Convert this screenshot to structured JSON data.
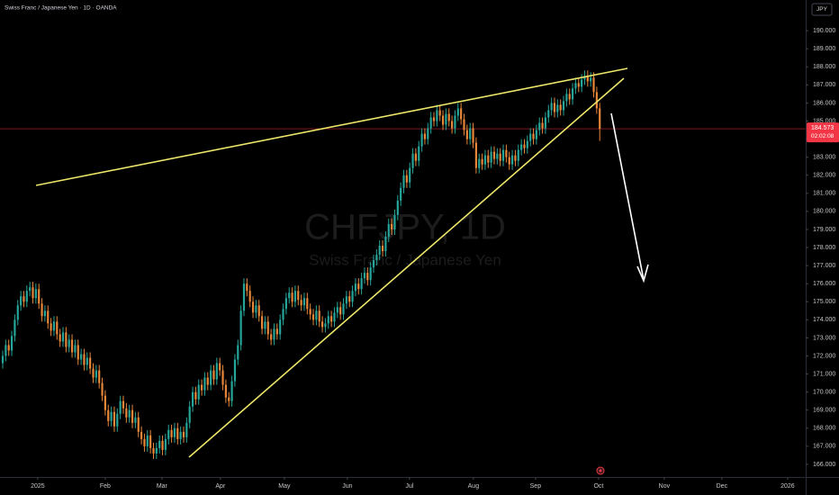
{
  "chart_data": {
    "type": "candlestick",
    "title": "Swiss Franc / Japanese Yen · 1D · OANDA",
    "watermark": "CHFJPY, 1D",
    "watermark_subtitle": "Swiss Franc / Japanese Yen",
    "currency": "JPY",
    "countdown": "02:02:08",
    "up_color": "#26a69a",
    "down_color": "#e8873a",
    "last_price_color": "#f23645",
    "grid": false,
    "open": [
      171.6,
      172.0,
      172.6,
      172.3,
      173.1,
      174.0,
      174.8,
      175.3,
      175.0,
      175.6,
      175.8,
      175.2,
      175.7,
      174.9,
      174.2,
      174.5,
      173.8,
      173.4,
      173.9,
      173.2,
      172.8,
      173.3,
      172.5,
      172.9,
      172.2,
      172.6,
      171.8,
      172.1,
      171.5,
      171.9,
      171.3,
      170.8,
      171.2,
      170.5,
      169.8,
      169.0,
      168.4,
      168.9,
      168.1,
      168.8,
      169.5,
      169.1,
      168.6,
      169.0,
      168.3,
      168.6,
      167.8,
      167.4,
      167.0,
      167.6,
      166.9,
      166.6,
      166.9,
      167.3,
      166.8,
      167.4,
      167.9,
      167.5,
      168.0,
      167.4,
      167.8,
      167.5,
      168.3,
      169.2,
      170.0,
      169.6,
      170.4,
      170.1,
      170.8,
      170.4,
      171.2,
      170.7,
      171.6,
      171.2,
      170.4,
      169.7,
      169.5,
      170.6,
      171.8,
      172.6,
      174.5,
      176.0,
      175.6,
      175.0,
      174.4,
      174.8,
      174.2,
      173.5,
      173.9,
      173.2,
      172.9,
      173.5,
      173.2,
      174.0,
      174.6,
      175.2,
      175.5,
      175.0,
      175.6,
      175.1,
      174.8,
      175.2,
      174.6,
      174.3,
      174.0,
      174.5,
      173.9,
      173.6,
      173.8,
      174.2,
      173.9,
      174.4,
      174.7,
      174.3,
      174.9,
      175.3,
      175.0,
      175.6,
      176.0,
      175.7,
      176.3,
      176.6,
      176.2,
      176.9,
      177.3,
      177.6,
      178.1,
      177.8,
      178.6,
      179.3,
      179.0,
      179.8,
      180.6,
      181.3,
      182.0,
      181.6,
      182.4,
      183.2,
      182.8,
      183.6,
      184.3,
      184.0,
      184.6,
      185.2,
      185.0,
      185.6,
      185.3,
      184.8,
      185.4,
      185.0,
      184.6,
      185.3,
      185.7,
      185.1,
      184.5,
      184.0,
      184.6,
      183.8,
      182.4,
      182.9,
      182.6,
      183.1,
      182.7,
      183.3,
      182.9,
      183.2,
      182.8,
      183.4,
      183.0,
      182.6,
      183.1,
      182.8,
      183.4,
      183.7,
      183.5,
      183.9,
      184.3,
      184.0,
      184.5,
      184.9,
      184.6,
      185.2,
      185.6,
      186.0,
      185.5,
      185.9,
      185.6,
      186.1,
      186.5,
      186.2,
      186.8,
      187.1,
      186.9,
      187.3,
      187.5,
      187.2,
      187.4,
      186.6,
      185.7
    ],
    "high": [
      172.3,
      172.9,
      172.9,
      173.4,
      174.3,
      175.1,
      175.6,
      175.6,
      175.9,
      176.1,
      176.1,
      176.0,
      176.0,
      175.2,
      174.8,
      174.8,
      174.1,
      174.2,
      174.2,
      173.5,
      173.6,
      173.6,
      173.2,
      173.2,
      172.9,
      172.9,
      172.4,
      172.4,
      172.2,
      172.2,
      171.6,
      171.5,
      171.5,
      170.8,
      170.1,
      169.3,
      169.2,
      169.2,
      169.1,
      169.8,
      169.8,
      169.4,
      169.3,
      169.3,
      168.9,
      168.9,
      168.1,
      167.7,
      167.9,
      167.9,
      167.2,
      167.2,
      167.6,
      167.6,
      167.7,
      168.2,
      168.2,
      168.3,
      168.3,
      168.1,
      168.1,
      168.6,
      169.5,
      170.3,
      170.3,
      170.7,
      170.7,
      171.1,
      171.1,
      171.5,
      171.5,
      171.9,
      171.9,
      171.5,
      170.7,
      170.0,
      170.9,
      172.1,
      172.9,
      174.8,
      176.3,
      176.3,
      175.9,
      175.3,
      175.1,
      175.1,
      174.5,
      174.2,
      174.2,
      173.5,
      173.8,
      173.8,
      174.3,
      174.9,
      175.5,
      175.8,
      175.8,
      175.9,
      175.9,
      175.4,
      175.5,
      175.5,
      174.9,
      174.6,
      174.8,
      174.8,
      174.2,
      174.1,
      174.5,
      174.5,
      174.7,
      175.0,
      175.0,
      175.2,
      175.6,
      175.6,
      175.9,
      176.3,
      176.3,
      176.6,
      176.9,
      176.9,
      177.2,
      177.6,
      177.9,
      178.4,
      178.4,
      178.9,
      179.6,
      179.6,
      180.1,
      180.9,
      181.6,
      182.3,
      182.3,
      182.7,
      183.5,
      183.5,
      183.9,
      184.6,
      184.6,
      184.9,
      185.5,
      185.5,
      185.9,
      185.9,
      185.6,
      185.7,
      185.7,
      185.3,
      185.6,
      186.0,
      186.0,
      185.4,
      184.8,
      184.9,
      184.9,
      184.1,
      183.2,
      183.2,
      183.4,
      183.4,
      183.6,
      183.6,
      183.5,
      183.5,
      183.7,
      183.7,
      183.3,
      183.4,
      183.4,
      183.7,
      184.0,
      184.0,
      184.2,
      184.6,
      184.6,
      184.8,
      185.2,
      185.2,
      185.5,
      185.9,
      186.3,
      186.3,
      186.2,
      186.2,
      186.4,
      186.8,
      186.8,
      187.1,
      187.4,
      187.4,
      187.6,
      187.8,
      187.8,
      187.7,
      187.7,
      186.9,
      186.0
    ],
    "low": [
      171.3,
      171.7,
      172.0,
      172.0,
      172.8,
      173.7,
      174.5,
      174.7,
      174.7,
      175.3,
      174.9,
      174.9,
      174.6,
      173.9,
      173.9,
      173.5,
      173.1,
      173.1,
      172.9,
      172.5,
      172.5,
      172.2,
      172.2,
      171.9,
      171.9,
      171.5,
      171.5,
      171.2,
      171.2,
      171.0,
      170.5,
      170.5,
      170.2,
      169.5,
      168.7,
      168.1,
      168.1,
      167.8,
      167.8,
      168.5,
      168.8,
      168.3,
      168.3,
      168.0,
      168.0,
      167.5,
      167.1,
      166.7,
      166.7,
      166.6,
      166.3,
      166.3,
      166.6,
      166.5,
      166.5,
      167.1,
      167.2,
      167.2,
      167.1,
      167.1,
      167.2,
      167.2,
      168.0,
      168.9,
      169.3,
      169.3,
      169.8,
      169.8,
      170.1,
      170.1,
      170.4,
      170.4,
      170.9,
      170.1,
      169.4,
      169.2,
      169.2,
      170.3,
      171.5,
      172.3,
      174.2,
      175.3,
      174.7,
      174.1,
      174.1,
      173.9,
      173.2,
      173.2,
      172.9,
      172.6,
      172.6,
      172.9,
      172.9,
      173.7,
      174.3,
      174.9,
      174.7,
      174.7,
      174.8,
      174.5,
      174.5,
      174.3,
      174.0,
      173.7,
      173.7,
      173.6,
      173.3,
      173.3,
      173.5,
      173.6,
      173.6,
      174.1,
      174.0,
      174.0,
      174.6,
      174.7,
      174.7,
      175.3,
      175.4,
      175.4,
      176.0,
      175.9,
      175.9,
      176.6,
      177.0,
      177.3,
      177.5,
      177.5,
      178.3,
      178.7,
      178.7,
      179.5,
      180.3,
      181.0,
      181.3,
      181.3,
      182.1,
      182.5,
      182.5,
      183.3,
      183.7,
      183.7,
      184.3,
      184.7,
      184.7,
      185.0,
      184.5,
      184.5,
      184.7,
      184.3,
      184.3,
      185.0,
      184.8,
      184.2,
      183.7,
      183.7,
      183.5,
      182.1,
      182.1,
      182.3,
      182.3,
      182.4,
      182.4,
      182.6,
      182.6,
      182.5,
      182.5,
      182.7,
      182.3,
      182.3,
      182.5,
      182.5,
      183.1,
      183.2,
      183.2,
      183.6,
      183.7,
      183.7,
      184.2,
      184.3,
      184.3,
      184.9,
      185.3,
      185.2,
      185.2,
      185.3,
      185.3,
      185.8,
      185.9,
      185.9,
      186.5,
      186.6,
      186.6,
      187.0,
      186.9,
      186.9,
      186.3,
      185.4,
      183.9
    ],
    "close": [
      172.0,
      172.6,
      172.3,
      173.1,
      174.0,
      174.8,
      175.3,
      175.0,
      175.6,
      175.8,
      175.2,
      175.7,
      174.9,
      174.2,
      174.5,
      173.8,
      173.4,
      173.9,
      173.2,
      172.8,
      173.3,
      172.5,
      172.9,
      172.2,
      172.6,
      171.8,
      172.1,
      171.5,
      171.9,
      171.3,
      170.8,
      171.2,
      170.5,
      169.8,
      169.0,
      168.4,
      168.9,
      168.1,
      168.8,
      169.5,
      169.1,
      168.6,
      169.0,
      168.3,
      168.6,
      167.8,
      167.4,
      167.0,
      167.6,
      166.9,
      166.6,
      166.9,
      167.3,
      166.8,
      167.4,
      167.9,
      167.5,
      168.0,
      167.4,
      167.8,
      167.5,
      168.3,
      169.2,
      170.0,
      169.6,
      170.4,
      170.1,
      170.8,
      170.4,
      171.2,
      170.7,
      171.6,
      171.2,
      170.4,
      169.7,
      169.5,
      170.6,
      171.8,
      172.6,
      174.5,
      176.0,
      175.6,
      175.0,
      174.4,
      174.8,
      174.2,
      173.5,
      173.9,
      173.2,
      172.9,
      173.5,
      173.2,
      174.0,
      174.6,
      175.2,
      175.5,
      175.0,
      175.6,
      175.1,
      174.8,
      175.2,
      174.6,
      174.3,
      174.0,
      174.5,
      173.9,
      173.6,
      173.8,
      174.2,
      173.9,
      174.4,
      174.7,
      174.3,
      174.9,
      175.3,
      175.0,
      175.6,
      176.0,
      175.7,
      176.3,
      176.6,
      176.2,
      176.9,
      177.3,
      177.6,
      178.1,
      177.8,
      178.6,
      179.3,
      179.0,
      179.8,
      180.6,
      181.3,
      182.0,
      181.6,
      182.4,
      183.2,
      182.8,
      183.6,
      184.3,
      184.0,
      184.6,
      185.2,
      185.0,
      185.6,
      185.3,
      184.8,
      185.4,
      185.0,
      184.6,
      185.3,
      185.7,
      185.1,
      184.5,
      184.0,
      184.6,
      183.8,
      182.4,
      182.9,
      182.6,
      183.1,
      182.7,
      183.3,
      182.9,
      183.2,
      182.8,
      183.4,
      183.0,
      182.6,
      183.1,
      182.8,
      183.4,
      183.7,
      183.5,
      183.9,
      184.3,
      184.0,
      184.5,
      184.9,
      184.6,
      185.2,
      185.6,
      186.0,
      185.5,
      185.9,
      185.6,
      186.1,
      186.5,
      186.2,
      186.8,
      187.1,
      186.9,
      187.3,
      187.5,
      187.2,
      187.4,
      186.6,
      185.7,
      184.573
    ],
    "xlim": [
      -0.9,
      266.3
    ],
    "xticks": [
      {
        "value": 11.6,
        "label": "2025"
      },
      {
        "value": 34.0,
        "label": "Feb"
      },
      {
        "value": 52.8,
        "label": "Mar"
      },
      {
        "value": 72.2,
        "label": "Apr"
      },
      {
        "value": 93.4,
        "label": "May"
      },
      {
        "value": 114.3,
        "label": "Jun"
      },
      {
        "value": 134.9,
        "label": "Jul"
      },
      {
        "value": 156.1,
        "label": "Aug"
      },
      {
        "value": 176.7,
        "label": "Sep"
      },
      {
        "value": 197.6,
        "label": "Oct"
      },
      {
        "value": 219.4,
        "label": "Nov"
      },
      {
        "value": 238.5,
        "label": "Dec"
      },
      {
        "value": 260.3,
        "label": "2026"
      }
    ],
    "ylim": [
      165.3,
      191.7
    ],
    "yticks": [
      {
        "value": 166,
        "label": "166.000"
      },
      {
        "value": 167,
        "label": "167.000"
      },
      {
        "value": 168,
        "label": "168.000"
      },
      {
        "value": 169,
        "label": "169.000"
      },
      {
        "value": 170,
        "label": "170.000"
      },
      {
        "value": 171,
        "label": "171.000"
      },
      {
        "value": 172,
        "label": "172.000"
      },
      {
        "value": 173,
        "label": "173.000"
      },
      {
        "value": 174,
        "label": "174.000"
      },
      {
        "value": 175,
        "label": "175.000"
      },
      {
        "value": 176,
        "label": "176.000"
      },
      {
        "value": 177,
        "label": "177.000"
      },
      {
        "value": 178,
        "label": "178.000"
      },
      {
        "value": 179,
        "label": "179.000"
      },
      {
        "value": 180,
        "label": "180.000"
      },
      {
        "value": 181,
        "label": "181.000"
      },
      {
        "value": 182,
        "label": "182.000"
      },
      {
        "value": 183,
        "label": "183.000"
      },
      {
        "value": 184,
        "label": "184.000"
      },
      {
        "value": 185,
        "label": "185.000"
      },
      {
        "value": 186,
        "label": "186.000"
      },
      {
        "value": 187,
        "label": "187.000"
      },
      {
        "value": 188,
        "label": "188.000"
      },
      {
        "value": 189,
        "label": "189.000"
      },
      {
        "value": 190,
        "label": "190.000"
      }
    ]
  }
}
